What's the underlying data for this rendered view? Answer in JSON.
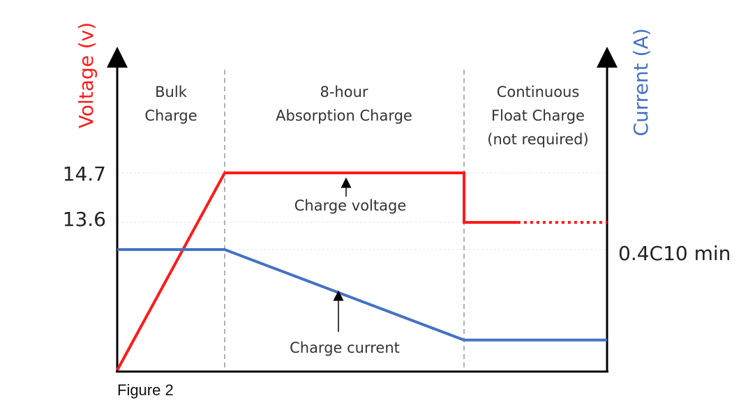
{
  "caption": "Figure 2",
  "chart_data": {
    "type": "line",
    "y_left_label": "Voltage (v)",
    "y_right_label": "Current (A)",
    "y_left_ticks": [
      "14.7",
      "13.6"
    ],
    "y_right_ticks": [
      "0.4C10 min"
    ],
    "phases": [
      {
        "name": "bulk",
        "lines": [
          "Bulk",
          "Charge"
        ]
      },
      {
        "name": "absorption",
        "lines": [
          "8-hour",
          "Absorption Charge"
        ]
      },
      {
        "name": "float",
        "lines": [
          "Continuous",
          "Float Charge",
          "(not required)"
        ]
      }
    ],
    "annotations": {
      "voltage": "Charge voltage",
      "current": "Charge current"
    },
    "colors": {
      "voltage": "#ff1a1a",
      "current": "#4472c4",
      "axis": "#000000",
      "guide": "#b0b0b0"
    },
    "series": [
      {
        "name": "Charge voltage",
        "color": "#ff1a1a",
        "points": [
          [
            0,
            0
          ],
          [
            1,
            14.7
          ],
          [
            3,
            14.7
          ],
          [
            3,
            13.6
          ],
          [
            3.45,
            13.6
          ]
        ],
        "dotted_extension": [
          [
            3.45,
            13.6
          ],
          [
            4.2,
            13.6
          ]
        ]
      },
      {
        "name": "Charge current",
        "color": "#4472c4",
        "points": [
          [
            0,
            0.4
          ],
          [
            1,
            0.4
          ],
          [
            3,
            0.1
          ],
          [
            4.2,
            0.1
          ]
        ]
      }
    ]
  }
}
